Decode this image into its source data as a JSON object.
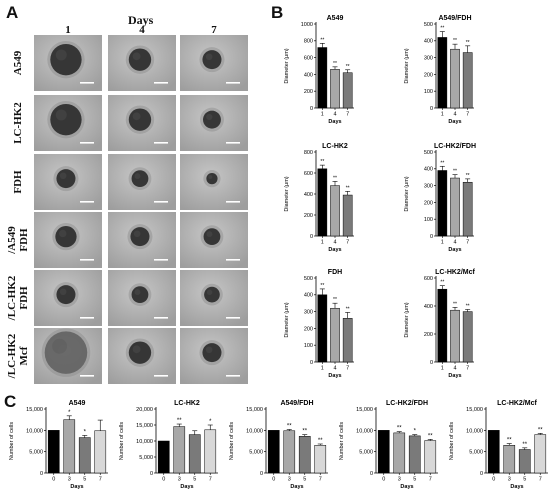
{
  "panel_labels": {
    "a": "A",
    "b": "B",
    "c": "C"
  },
  "panel_a": {
    "days_title": "Days",
    "days": [
      "1",
      "4",
      "7"
    ],
    "rows": [
      {
        "label": "A549",
        "sizes": [
          0.28,
          0.2,
          0.17
        ]
      },
      {
        "label": "LC-HK2",
        "sizes": [
          0.28,
          0.2,
          0.16
        ]
      },
      {
        "label": "FDH",
        "sizes": [
          0.17,
          0.15,
          0.1
        ]
      },
      {
        "label": "/A549\nFDH",
        "sizes": [
          0.19,
          0.17,
          0.15
        ]
      },
      {
        "label": "/LC-HK2\nFDH",
        "sizes": [
          0.17,
          0.15,
          0.14
        ]
      },
      {
        "label": "/LC-HK2\nMcf",
        "sizes": [
          0.38,
          0.2,
          0.17
        ]
      }
    ]
  },
  "chart_data": [
    {
      "type": "bar",
      "panel": "B",
      "title": "A549",
      "xlabel": "Days",
      "ylabel": "Diameter (μm)",
      "categories": [
        "1",
        "4",
        "7"
      ],
      "values": [
        720,
        460,
        420
      ],
      "errors": [
        50,
        30,
        35
      ],
      "ylim": [
        0,
        1000
      ],
      "yticks": [
        "0",
        "200",
        "400",
        "600",
        "800",
        "1000"
      ],
      "annotations": [
        "**",
        "**",
        "**"
      ]
    },
    {
      "type": "bar",
      "panel": "B",
      "title": "A549/FDH",
      "xlabel": "Days",
      "ylabel": "Diameter (μm)",
      "categories": [
        "1",
        "4",
        "7"
      ],
      "values": [
        420,
        350,
        330
      ],
      "errors": [
        35,
        30,
        40
      ],
      "ylim": [
        0,
        500
      ],
      "yticks": [
        "0",
        "100",
        "200",
        "300",
        "400",
        "500"
      ],
      "annotations": [
        "**",
        "**",
        "**"
      ]
    },
    {
      "type": "bar",
      "panel": "B",
      "title": "LC-HK2",
      "xlabel": "Days",
      "ylabel": "Diameter (μm)",
      "categories": [
        "1",
        "4",
        "7"
      ],
      "values": [
        640,
        480,
        390
      ],
      "errors": [
        35,
        40,
        35
      ],
      "ylim": [
        0,
        800
      ],
      "yticks": [
        "0",
        "200",
        "400",
        "600",
        "800"
      ],
      "annotations": [
        "**",
        "**",
        "**"
      ]
    },
    {
      "type": "bar",
      "panel": "B",
      "title": "LC-HK2/FDH",
      "xlabel": "Days",
      "ylabel": "Diameter (μm)",
      "categories": [
        "1",
        "4",
        "7"
      ],
      "values": [
        390,
        345,
        320
      ],
      "errors": [
        25,
        20,
        20
      ],
      "ylim": [
        0,
        500
      ],
      "yticks": [
        "0",
        "100",
        "200",
        "300",
        "400",
        "500"
      ],
      "annotations": [
        "**",
        "**",
        "**"
      ]
    },
    {
      "type": "bar",
      "panel": "B",
      "title": "FDH",
      "xlabel": "Days",
      "ylabel": "Diameter (μm)",
      "categories": [
        "1",
        "4",
        "7"
      ],
      "values": [
        400,
        320,
        260
      ],
      "errors": [
        35,
        30,
        35
      ],
      "ylim": [
        0,
        500
      ],
      "yticks": [
        "0",
        "100",
        "200",
        "300",
        "400",
        "500"
      ],
      "annotations": [
        "**",
        "**",
        "**"
      ]
    },
    {
      "type": "bar",
      "panel": "B",
      "title": "LC-HK2/Mcf",
      "xlabel": "Days",
      "ylabel": "Diameter (μm)",
      "categories": [
        "1",
        "4",
        "7"
      ],
      "values": [
        520,
        370,
        360
      ],
      "errors": [
        25,
        20,
        15
      ],
      "ylim": [
        0,
        600
      ],
      "yticks": [
        "0",
        "200",
        "400",
        "600"
      ],
      "annotations": [
        "**",
        "**",
        "**"
      ]
    },
    {
      "type": "bar",
      "panel": "C",
      "title": "A549",
      "xlabel": "Days",
      "ylabel": "Number of cells",
      "categories": [
        "0",
        "3",
        "5",
        "7"
      ],
      "values": [
        10000,
        12500,
        8300,
        9900
      ],
      "errors": [
        0,
        900,
        500,
        2500
      ],
      "ylim": [
        0,
        15000
      ],
      "yticks": [
        "0",
        "5,000",
        "10,000",
        "15,000"
      ],
      "annotations": [
        "",
        "*",
        "*",
        ""
      ]
    },
    {
      "type": "bar",
      "panel": "C",
      "title": "LC-HK2",
      "xlabel": "Days",
      "ylabel": "Number of cells",
      "categories": [
        "0",
        "3",
        "5",
        "7"
      ],
      "values": [
        10000,
        14500,
        12000,
        13500
      ],
      "errors": [
        0,
        800,
        1200,
        1500
      ],
      "ylim": [
        0,
        20000
      ],
      "yticks": [
        "0",
        "5,000",
        "10,000",
        "15,000",
        "20,000"
      ],
      "annotations": [
        "",
        "**",
        "",
        "*"
      ]
    },
    {
      "type": "bar",
      "panel": "C",
      "title": "A549/FDH",
      "xlabel": "Days",
      "ylabel": "Number of cells",
      "categories": [
        "0",
        "3",
        "5",
        "7"
      ],
      "values": [
        10000,
        9900,
        8600,
        6500
      ],
      "errors": [
        0,
        300,
        400,
        300
      ],
      "ylim": [
        0,
        15000
      ],
      "yticks": [
        "0",
        "5,000",
        "10,000",
        "15,000"
      ],
      "annotations": [
        "",
        "**",
        "**",
        "**"
      ]
    },
    {
      "type": "bar",
      "panel": "C",
      "title": "LC-HK2/FDH",
      "xlabel": "Days",
      "ylabel": "Number of cells",
      "categories": [
        "0",
        "3",
        "5",
        "7"
      ],
      "values": [
        10000,
        9400,
        8700,
        7600
      ],
      "errors": [
        0,
        300,
        300,
        300
      ],
      "ylim": [
        0,
        15000
      ],
      "yticks": [
        "0",
        "5,000",
        "10,000",
        "15,000"
      ],
      "annotations": [
        "",
        "**",
        "*",
        "**"
      ]
    },
    {
      "type": "bar",
      "panel": "C",
      "title": "LC-HK2/Mcf",
      "xlabel": "Days",
      "ylabel": "Number of cells",
      "categories": [
        "0",
        "3",
        "5",
        "7"
      ],
      "values": [
        10000,
        6500,
        5500,
        9000
      ],
      "errors": [
        0,
        400,
        400,
        300
      ],
      "ylim": [
        0,
        15000
      ],
      "yticks": [
        "0",
        "5,000",
        "10,000",
        "15,000"
      ],
      "annotations": [
        "",
        "**",
        "**",
        "**"
      ]
    }
  ],
  "colors": {
    "bar_fills": [
      "#000000",
      "#a8a8a8",
      "#7a7a7a",
      "#d8d8d8"
    ],
    "axis": "#000000",
    "micro_bg": "#b4b4b4"
  }
}
